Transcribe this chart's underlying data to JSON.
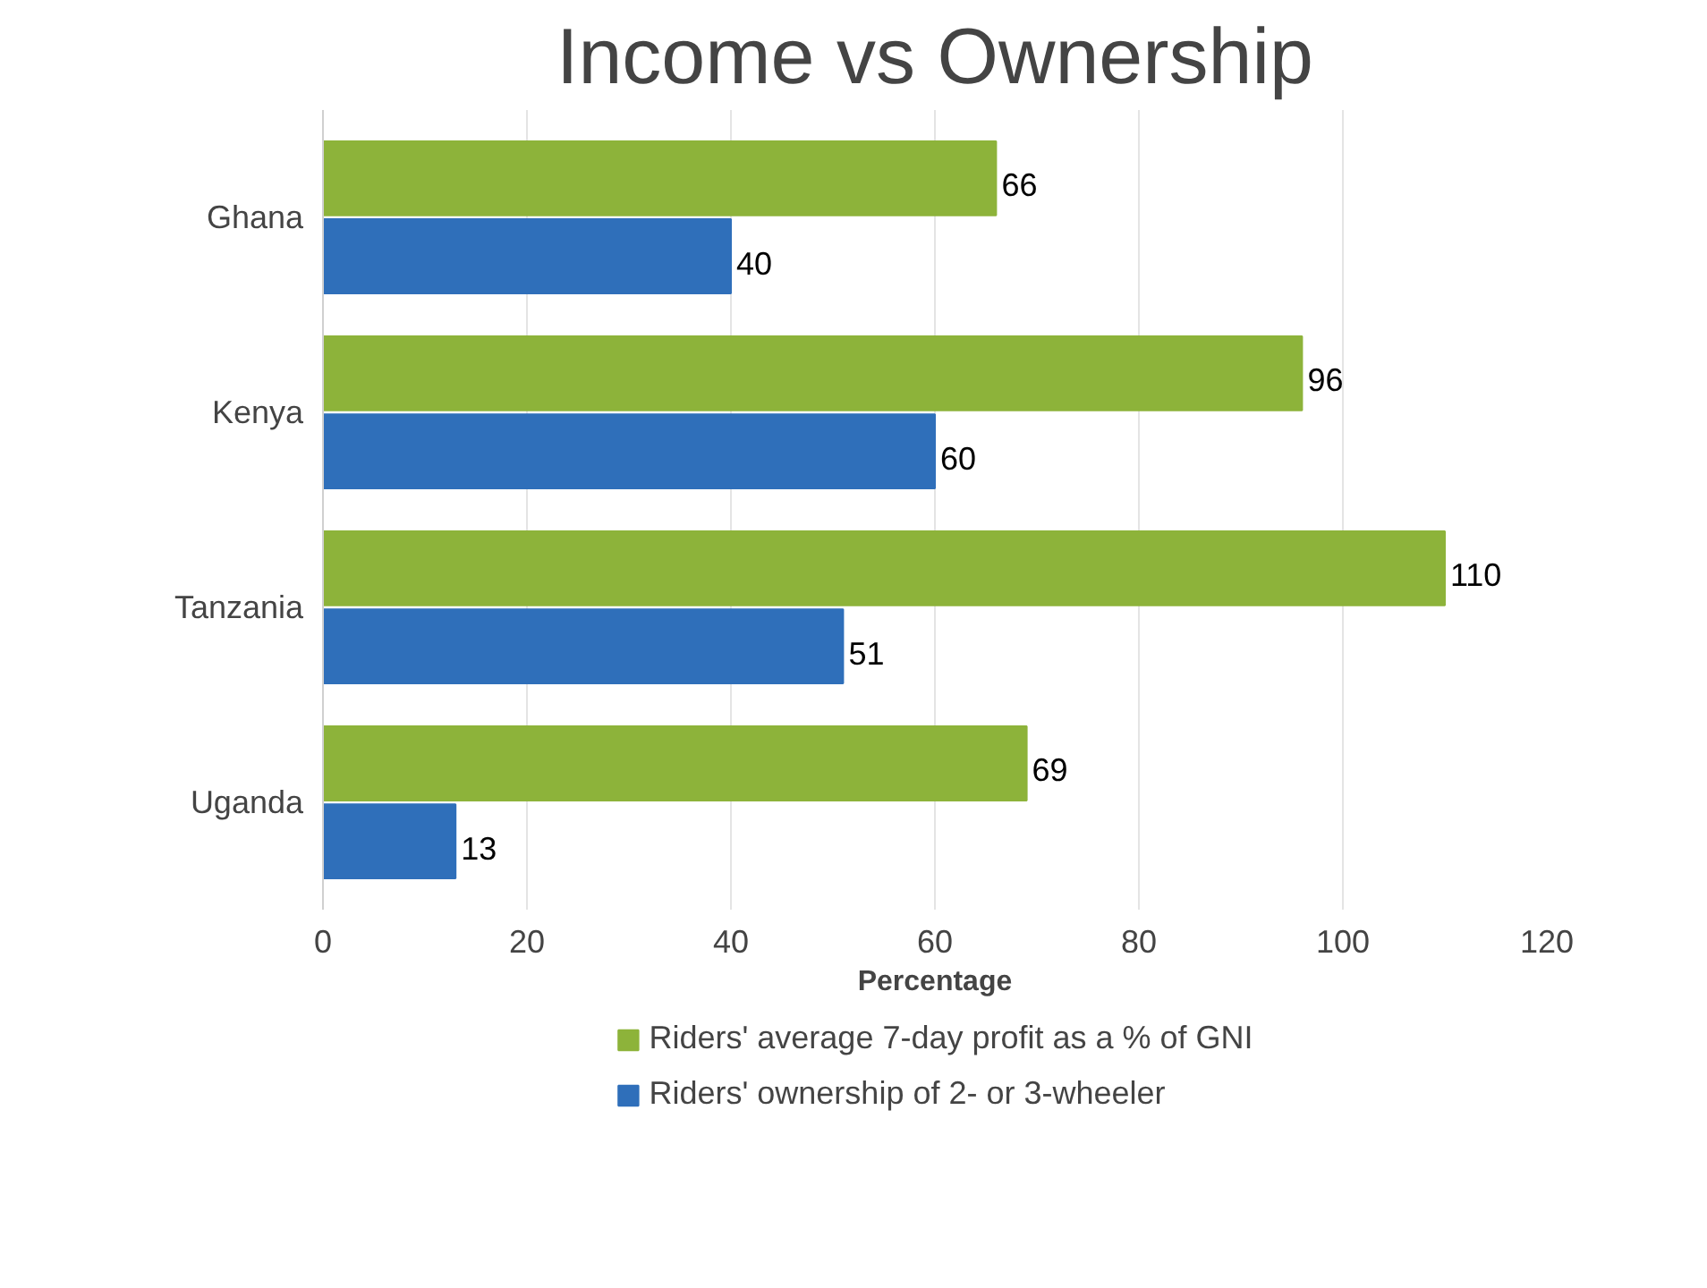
{
  "chart_data": {
    "type": "bar",
    "orientation": "horizontal",
    "title": "Income vs Ownership",
    "xlabel": "Percentage",
    "categories": [
      "Ghana",
      "Kenya",
      "Tanzania",
      "Uganda"
    ],
    "series": [
      {
        "name": "Riders' average 7-day profit as a % of GNI",
        "color": "#8db33a",
        "values": [
          66,
          96,
          110,
          69
        ]
      },
      {
        "name": "Riders' ownership of 2- or 3-wheeler",
        "color": "#2f6fba",
        "values": [
          40,
          60,
          51,
          13
        ]
      }
    ],
    "xlim": [
      0,
      120
    ],
    "xticks": [
      0,
      20,
      40,
      60,
      80,
      100,
      120
    ],
    "grid": "x",
    "legend": "bottom",
    "data_labels": true
  }
}
